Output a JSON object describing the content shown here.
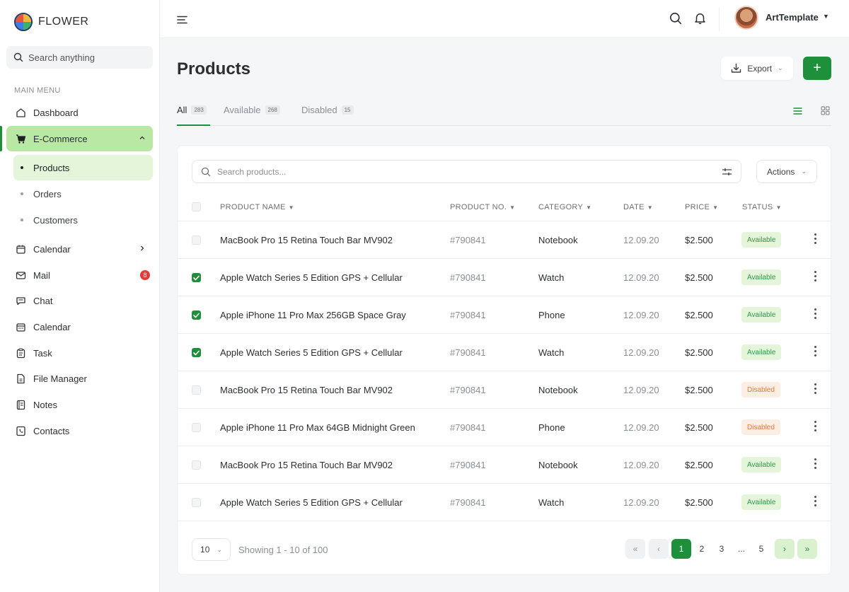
{
  "brand": {
    "name": "FLOWER"
  },
  "sidebar": {
    "search_placeholder": "Search anything",
    "menu_title": "MAIN MENU",
    "items": [
      {
        "label": "Dashboard",
        "icon": "home-icon"
      },
      {
        "label": "E-Commerce",
        "icon": "cart-icon"
      },
      {
        "label": "Calendar",
        "icon": "calendar-icon"
      },
      {
        "label": "Mail",
        "icon": "mail-icon",
        "badge": "8"
      },
      {
        "label": "Chat",
        "icon": "chat-icon"
      },
      {
        "label": "Calendar",
        "icon": "calendar-icon"
      },
      {
        "label": "Task",
        "icon": "clipboard-icon"
      },
      {
        "label": "File Manager",
        "icon": "file-icon"
      },
      {
        "label": "Notes",
        "icon": "notes-icon"
      },
      {
        "label": "Contacts",
        "icon": "contacts-icon"
      }
    ],
    "subitems": [
      {
        "label": "Products"
      },
      {
        "label": "Orders"
      },
      {
        "label": "Customers"
      }
    ]
  },
  "topbar": {
    "username": "ArtTemplate"
  },
  "page": {
    "title": "Products",
    "export_label": "Export",
    "add_label": "+"
  },
  "tabs": [
    {
      "label": "All",
      "count": "283"
    },
    {
      "label": "Available",
      "count": "268"
    },
    {
      "label": "Disabled",
      "count": "15"
    }
  ],
  "table": {
    "search_placeholder": "Search products...",
    "actions_label": "Actions",
    "columns": [
      "PRODUCT NAME",
      "PRODUCT NO.",
      "CATEGORY",
      "DATE",
      "PRICE",
      "STATUS"
    ],
    "rows": [
      {
        "name": "MacBook Pro 15 Retina Touch Bar MV902",
        "no": "#790841",
        "category": "Notebook",
        "date": "12.09.20",
        "price": "$2.500",
        "status": "Available",
        "checked": false
      },
      {
        "name": "Apple Watch Series 5 Edition GPS + Cellular",
        "no": "#790841",
        "category": "Watch",
        "date": "12.09.20",
        "price": "$2.500",
        "status": "Available",
        "checked": true
      },
      {
        "name": "Apple iPhone 11 Pro Max 256GB Space Gray",
        "no": "#790841",
        "category": "Phone",
        "date": "12.09.20",
        "price": "$2.500",
        "status": "Available",
        "checked": true
      },
      {
        "name": "Apple Watch Series 5 Edition GPS + Cellular",
        "no": "#790841",
        "category": "Watch",
        "date": "12.09.20",
        "price": "$2.500",
        "status": "Available",
        "checked": true
      },
      {
        "name": "MacBook Pro 15 Retina Touch Bar MV902",
        "no": "#790841",
        "category": "Notebook",
        "date": "12.09.20",
        "price": "$2.500",
        "status": "Disabled",
        "checked": false
      },
      {
        "name": "Apple iPhone 11 Pro Max 64GB Midnight Green",
        "no": "#790841",
        "category": "Phone",
        "date": "12.09.20",
        "price": "$2.500",
        "status": "Disabled",
        "checked": false
      },
      {
        "name": "MacBook Pro 15 Retina Touch Bar MV902",
        "no": "#790841",
        "category": "Notebook",
        "date": "12.09.20",
        "price": "$2.500",
        "status": "Available",
        "checked": false
      },
      {
        "name": "Apple Watch Series 5 Edition GPS + Cellular",
        "no": "#790841",
        "category": "Watch",
        "date": "12.09.20",
        "price": "$2.500",
        "status": "Available",
        "checked": false
      }
    ]
  },
  "footer": {
    "page_size": "10",
    "showing": "Showing 1 - 10 of 100",
    "pages": [
      "1",
      "2",
      "3",
      "...",
      "5"
    ]
  },
  "colors": {
    "accent": "#1e8f3a",
    "active_menu_bg": "#b9e8a4",
    "available_bg": "#e4f5da",
    "available_text": "#2e9a4a",
    "disabled_bg": "#fdeee4",
    "disabled_text": "#e07a3b"
  }
}
